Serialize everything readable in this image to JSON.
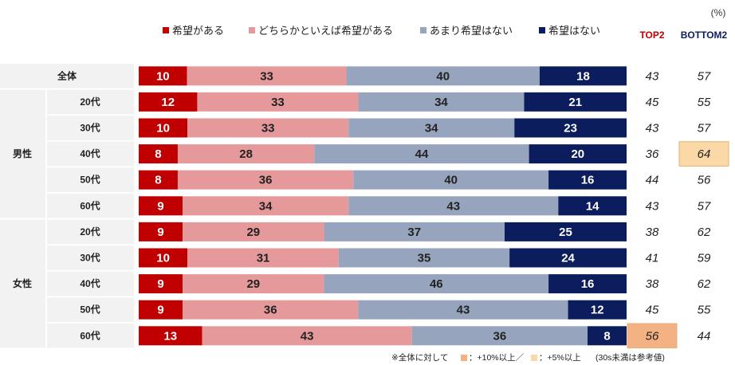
{
  "chart_data": {
    "type": "bar",
    "stacked": true,
    "orientation": "horizontal",
    "unit_label": "(%)",
    "legend": [
      {
        "name": "希望がある",
        "color": "#c00000"
      },
      {
        "name": "どちらかといえば希望がある",
        "color": "#e6999a"
      },
      {
        "name": "あまり希望はない",
        "color": "#97a4bd"
      },
      {
        "name": "希望はない",
        "color": "#0c1d5e"
      }
    ],
    "summary_headers": {
      "top2": "TOP2",
      "bottom2": "BOTTOM2"
    },
    "summary_colors": {
      "top2": "#c00000",
      "bottom2": "#0c1d5e"
    },
    "groups": [
      {
        "label": "",
        "rows": [
          0
        ]
      },
      {
        "label": "男性",
        "rows": [
          1,
          2,
          3,
          4,
          5
        ]
      },
      {
        "label": "女性",
        "rows": [
          6,
          7,
          8,
          9,
          10
        ]
      }
    ],
    "rows": [
      {
        "group": "",
        "label": "全体",
        "values": [
          10,
          33,
          40,
          18
        ],
        "top2": 43,
        "bottom2": 57
      },
      {
        "group": "男性",
        "label": "20代",
        "values": [
          12,
          33,
          34,
          21
        ],
        "top2": 45,
        "bottom2": 55
      },
      {
        "group": "男性",
        "label": "30代",
        "values": [
          10,
          33,
          34,
          23
        ],
        "top2": 43,
        "bottom2": 57
      },
      {
        "group": "男性",
        "label": "40代",
        "values": [
          8,
          28,
          44,
          20
        ],
        "top2": 36,
        "bottom2": 64,
        "highlight": "bottom2",
        "highlight_level": "5"
      },
      {
        "group": "男性",
        "label": "50代",
        "values": [
          8,
          36,
          40,
          16
        ],
        "top2": 44,
        "bottom2": 56
      },
      {
        "group": "男性",
        "label": "60代",
        "values": [
          9,
          34,
          43,
          14
        ],
        "top2": 43,
        "bottom2": 57
      },
      {
        "group": "女性",
        "label": "20代",
        "values": [
          9,
          29,
          37,
          25
        ],
        "top2": 38,
        "bottom2": 62
      },
      {
        "group": "女性",
        "label": "30代",
        "values": [
          10,
          31,
          35,
          24
        ],
        "top2": 41,
        "bottom2": 59
      },
      {
        "group": "女性",
        "label": "40代",
        "values": [
          9,
          29,
          46,
          16
        ],
        "top2": 38,
        "bottom2": 62
      },
      {
        "group": "女性",
        "label": "50代",
        "values": [
          9,
          36,
          43,
          12
        ],
        "top2": 45,
        "bottom2": 55
      },
      {
        "group": "女性",
        "label": "60代",
        "values": [
          13,
          43,
          36,
          8
        ],
        "top2": 56,
        "bottom2": 44,
        "highlight": "top2",
        "highlight_level": "10"
      }
    ],
    "highlight_colors": {
      "10": "#f4b183",
      "5": "#fbd9a7"
    },
    "footnote": {
      "prefix": "※全体に対して",
      "item1": "：+10%以上／",
      "item2": "：+5%以上",
      "suffix": "(30s未満は参考値)"
    }
  }
}
